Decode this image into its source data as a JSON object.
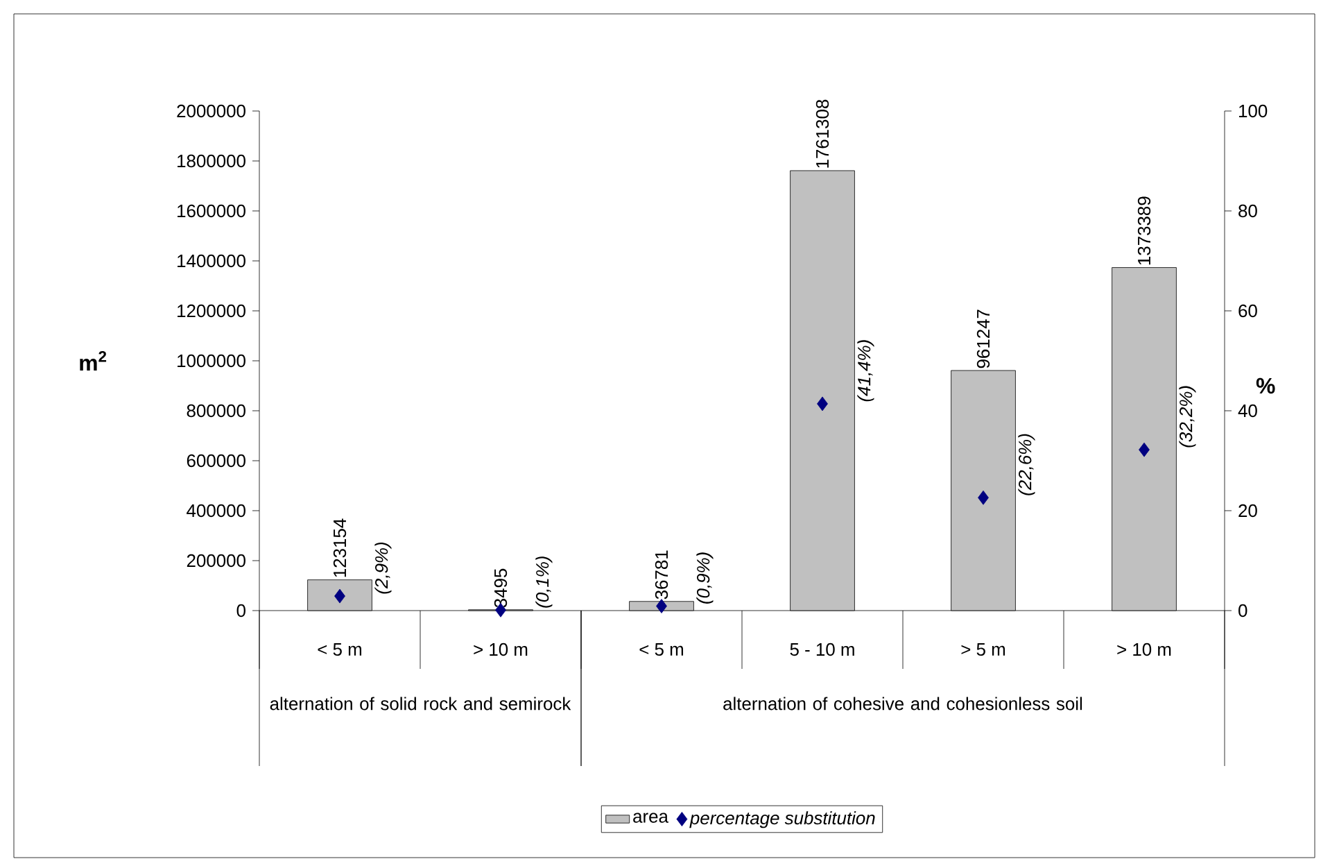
{
  "chart_data": {
    "type": "bar",
    "categories": [
      "< 5 m",
      "> 10 m",
      "< 5 m",
      "5 - 10 m",
      "> 5 m",
      "> 10 m"
    ],
    "series": [
      {
        "name": "area",
        "color": "#c0c0c0",
        "values": [
          123154,
          3495,
          36781,
          1761308,
          961247,
          1373389
        ],
        "value_labels": [
          "123154",
          "3495",
          "36781",
          "1761308",
          "961247",
          "1373389"
        ]
      },
      {
        "name": "percentage substitution",
        "type": "scatter",
        "axis": "y2",
        "color": "#000080",
        "marker": "diamond",
        "values": [
          2.9,
          0.1,
          0.9,
          41.4,
          22.6,
          32.2
        ],
        "value_labels": [
          "(2,9%)",
          "(0,1%)",
          "(0,9%)",
          "(41,4%)",
          "(22,6%)",
          "(32,2%)"
        ]
      }
    ],
    "ylabel": "m$^{2}$",
    "y2label": "%",
    "ylim": [
      0,
      2000000
    ],
    "yticks": [
      0,
      200000,
      400000,
      600000,
      800000,
      1000000,
      1200000,
      1400000,
      1600000,
      1800000,
      2000000
    ],
    "y2lim": [
      0,
      100
    ],
    "y2ticks": [
      0,
      20,
      40,
      60,
      80,
      100
    ],
    "annotations": [
      "alternation of solid rock and semirock",
      "alternation of cohesive and cohesionless soil"
    ],
    "grid": false,
    "legend": "bottom"
  }
}
